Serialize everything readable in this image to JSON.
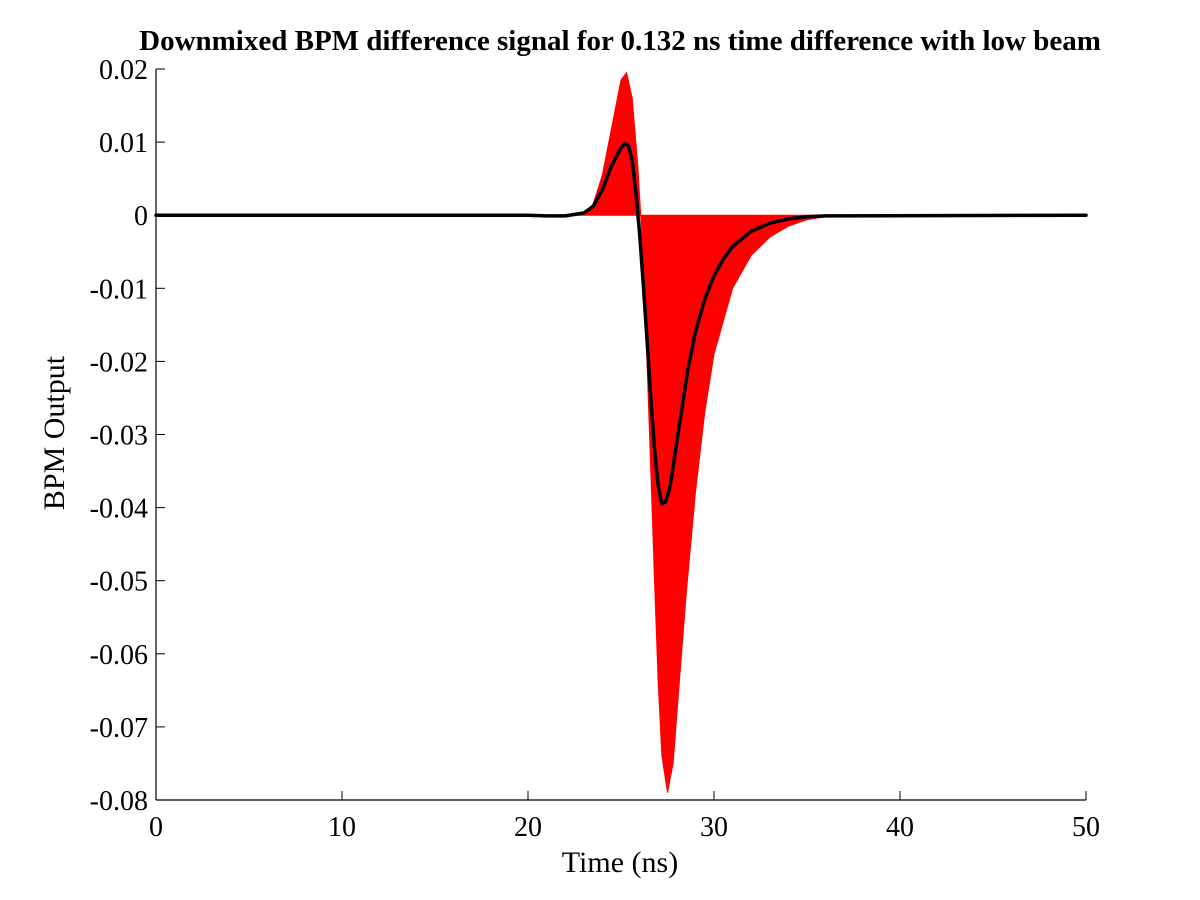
{
  "chart_data": {
    "type": "area",
    "title": "Downmixed BPM difference signal for 0.132 ns time difference with low beam",
    "xlabel": "Time (ns)",
    "ylabel": "BPM Output",
    "xlim": [
      0,
      50
    ],
    "ylim": [
      -0.08,
      0.02
    ],
    "xticks": [
      0,
      10,
      20,
      30,
      40,
      50
    ],
    "xtick_labels": [
      "0",
      "10",
      "20",
      "30",
      "40",
      "50"
    ],
    "yticks": [
      0.02,
      0.01,
      0,
      -0.01,
      -0.02,
      -0.03,
      -0.04,
      -0.05,
      -0.06,
      -0.07,
      -0.08
    ],
    "ytick_labels": [
      "0.02",
      "0.01",
      "0",
      "-0.01",
      "-0.02",
      "-0.03",
      "-0.04",
      "-0.05",
      "-0.06",
      "-0.07",
      "-0.08"
    ],
    "grid": false,
    "legend": "none",
    "series": [
      {
        "style": "filled-area",
        "color": "#ff0000",
        "x": [
          0,
          20,
          21,
          22,
          23,
          23.5,
          24,
          24.5,
          25,
          25.3,
          25.6,
          25.9,
          26.2,
          26.4,
          26.6,
          26.8,
          27.0,
          27.2,
          27.5,
          27.8,
          28.1,
          28.5,
          29.0,
          29.5,
          30.0,
          31.0,
          32.0,
          33.0,
          34.0,
          35.0,
          36.0,
          50
        ],
        "values": [
          0,
          0,
          -0.0002,
          -0.0002,
          0.0003,
          0.0015,
          0.0055,
          0.012,
          0.0185,
          0.0195,
          0.016,
          0.007,
          -0.006,
          -0.02,
          -0.035,
          -0.05,
          -0.064,
          -0.074,
          -0.079,
          -0.075,
          -0.065,
          -0.052,
          -0.038,
          -0.027,
          -0.019,
          -0.01,
          -0.0055,
          -0.003,
          -0.0015,
          -0.0006,
          -0.0002,
          0
        ]
      },
      {
        "style": "line",
        "color": "#000000",
        "x": [
          0,
          20,
          21,
          22,
          23,
          23.5,
          24,
          24.5,
          25,
          25.2,
          25.4,
          25.6,
          25.8,
          26.0,
          26.2,
          26.4,
          26.6,
          26.8,
          27.0,
          27.2,
          27.4,
          27.6,
          27.8,
          28.0,
          28.3,
          28.6,
          29.0,
          29.5,
          30.0,
          30.5,
          31.0,
          32.0,
          33.0,
          34.0,
          35.0,
          36.0,
          50
        ],
        "values": [
          0,
          0,
          -0.0001,
          -0.0001,
          0.0003,
          0.0012,
          0.0035,
          0.0068,
          0.0092,
          0.0098,
          0.0095,
          0.0075,
          0.003,
          -0.0025,
          -0.0095,
          -0.017,
          -0.025,
          -0.032,
          -0.037,
          -0.0395,
          -0.0392,
          -0.0375,
          -0.0345,
          -0.031,
          -0.026,
          -0.021,
          -0.016,
          -0.0115,
          -0.0083,
          -0.006,
          -0.0043,
          -0.0022,
          -0.0011,
          -0.0005,
          -0.0002,
          -0.0001,
          0
        ]
      }
    ]
  }
}
